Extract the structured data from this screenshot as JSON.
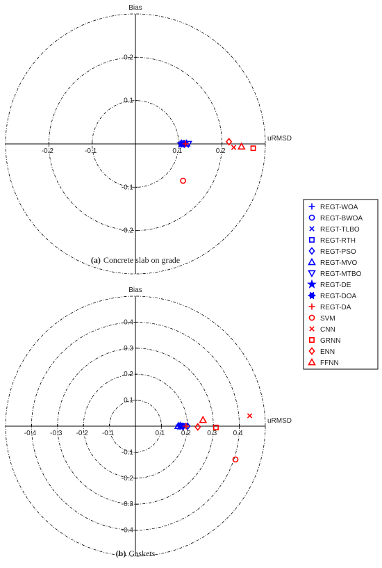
{
  "chart_data": [
    {
      "type": "target",
      "xlabel": "uRMSD",
      "ylabel": "Bias",
      "caption_label": "(a)",
      "caption": "Concrete slab on grade",
      "xlim": [
        -0.3,
        0.3
      ],
      "ylim": [
        -0.3,
        0.3
      ],
      "xticks": [
        -0.2,
        -0.1,
        0.1,
        0.2
      ],
      "yticks": [
        -0.2,
        -0.1,
        0.1,
        0.2
      ],
      "series": [
        {
          "name": "REGT-WOA",
          "color": "#0000ff",
          "marker": "plus",
          "x": [
            0.11
          ],
          "y": [
            0.0
          ]
        },
        {
          "name": "REGT-BWOA",
          "color": "#0000ff",
          "marker": "circle",
          "x": [
            0.112
          ],
          "y": [
            0.002
          ]
        },
        {
          "name": "REGT-TLBO",
          "color": "#0000ff",
          "marker": "x",
          "x": [
            0.115
          ],
          "y": [
            0.0
          ]
        },
        {
          "name": "REGT-RTH",
          "color": "#0000ff",
          "marker": "square",
          "x": [
            0.108
          ],
          "y": [
            0.001
          ]
        },
        {
          "name": "REGT-PSO",
          "color": "#0000ff",
          "marker": "diamond",
          "x": [
            0.113
          ],
          "y": [
            0.0
          ]
        },
        {
          "name": "REGT-MVO",
          "color": "#0000ff",
          "marker": "triangle",
          "x": [
            0.118
          ],
          "y": [
            0.001
          ]
        },
        {
          "name": "REGT-MTBO",
          "color": "#0000ff",
          "marker": "triangle-down",
          "x": [
            0.122
          ],
          "y": [
            0.0
          ]
        },
        {
          "name": "REGT-DE",
          "color": "#0000ff",
          "marker": "star",
          "x": [
            0.106
          ],
          "y": [
            0.0
          ]
        },
        {
          "name": "REGT-DOA",
          "color": "#0000ff",
          "marker": "asterisk",
          "x": [
            0.109
          ],
          "y": [
            -0.001
          ]
        },
        {
          "name": "REGT-DA",
          "color": "#ff0000",
          "marker": "plus",
          "x": [
            0.116
          ],
          "y": [
            0.0
          ]
        },
        {
          "name": "SVM",
          "color": "#ff0000",
          "marker": "circle",
          "x": [
            0.11
          ],
          "y": [
            -0.085
          ]
        },
        {
          "name": "CNN",
          "color": "#ff0000",
          "marker": "x",
          "x": [
            0.227
          ],
          "y": [
            -0.008
          ]
        },
        {
          "name": "GRNN",
          "color": "#ff0000",
          "marker": "square",
          "x": [
            0.272
          ],
          "y": [
            -0.01
          ]
        },
        {
          "name": "ENN",
          "color": "#ff0000",
          "marker": "diamond",
          "x": [
            0.216
          ],
          "y": [
            0.005
          ]
        },
        {
          "name": "FFNN",
          "color": "#ff0000",
          "marker": "triangle",
          "x": [
            0.245
          ],
          "y": [
            -0.006
          ]
        }
      ]
    },
    {
      "type": "target",
      "xlabel": "uRMSD",
      "ylabel": "Bias",
      "caption_label": "(b)",
      "caption": "Gaskets",
      "xlim": [
        -0.5,
        0.5
      ],
      "ylim": [
        -0.5,
        0.5
      ],
      "xticks": [
        -0.4,
        -0.3,
        -0.2,
        -0.1,
        0.1,
        0.2,
        0.3,
        0.4
      ],
      "yticks": [
        -0.4,
        -0.3,
        -0.2,
        -0.1,
        0.1,
        0.2,
        0.3,
        0.4
      ],
      "series": [
        {
          "x": [
            0.17
          ],
          "y": [
            0.0
          ]
        },
        {
          "x": [
            0.18
          ],
          "y": [
            0.002
          ]
        },
        {
          "x": [
            0.19
          ],
          "y": [
            0.0
          ]
        },
        {
          "x": [
            0.175
          ],
          "y": [
            0.001
          ]
        },
        {
          "x": [
            0.2
          ],
          "y": [
            0.0
          ]
        },
        {
          "x": [
            0.165
          ],
          "y": [
            0.001
          ]
        },
        {
          "x": [
            0.185
          ],
          "y": [
            0.0
          ]
        },
        {
          "x": [
            0.172
          ],
          "y": [
            0.0
          ]
        },
        {
          "x": [
            0.178
          ],
          "y": [
            -0.001
          ]
        },
        {
          "x": [
            0.195
          ],
          "y": [
            0.0
          ]
        },
        {
          "x": [
            0.385
          ],
          "y": [
            -0.128
          ]
        },
        {
          "x": [
            0.44
          ],
          "y": [
            0.04
          ]
        },
        {
          "x": [
            0.31
          ],
          "y": [
            -0.005
          ]
        },
        {
          "x": [
            0.24
          ],
          "y": [
            -0.003
          ]
        },
        {
          "x": [
            0.26
          ],
          "y": [
            0.024
          ]
        }
      ]
    }
  ]
}
